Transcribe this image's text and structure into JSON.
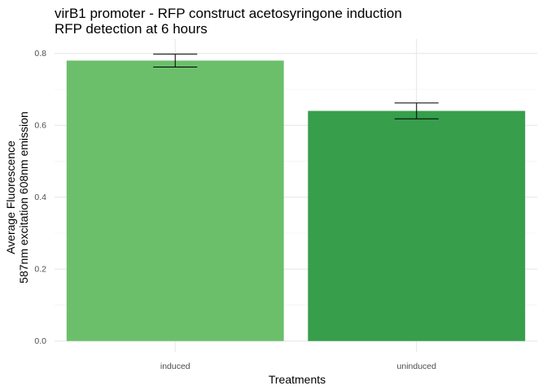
{
  "chart_data": {
    "type": "bar",
    "title_lines": [
      "virB1 promoter - RFP construct acetosyringone induction",
      "RFP detection at 6 hours"
    ],
    "xlabel": "Treatments",
    "ylabel_lines": [
      "Average Fluorescence",
      "587nm excitation 608nm emission"
    ],
    "categories": [
      "induced",
      "uninduced"
    ],
    "values": [
      0.78,
      0.64
    ],
    "error_low": [
      0.762,
      0.618
    ],
    "error_high": [
      0.798,
      0.662
    ],
    "bar_colors": [
      "#6bbf6b",
      "#379e4b"
    ],
    "ylim": [
      -0.03,
      0.84
    ],
    "y_ticks": [
      0.0,
      0.2,
      0.4,
      0.6,
      0.8
    ],
    "y_tick_labels": [
      "0.0",
      "0.2",
      "0.4",
      "0.6",
      "0.8"
    ],
    "grid": true,
    "legend": "none"
  }
}
